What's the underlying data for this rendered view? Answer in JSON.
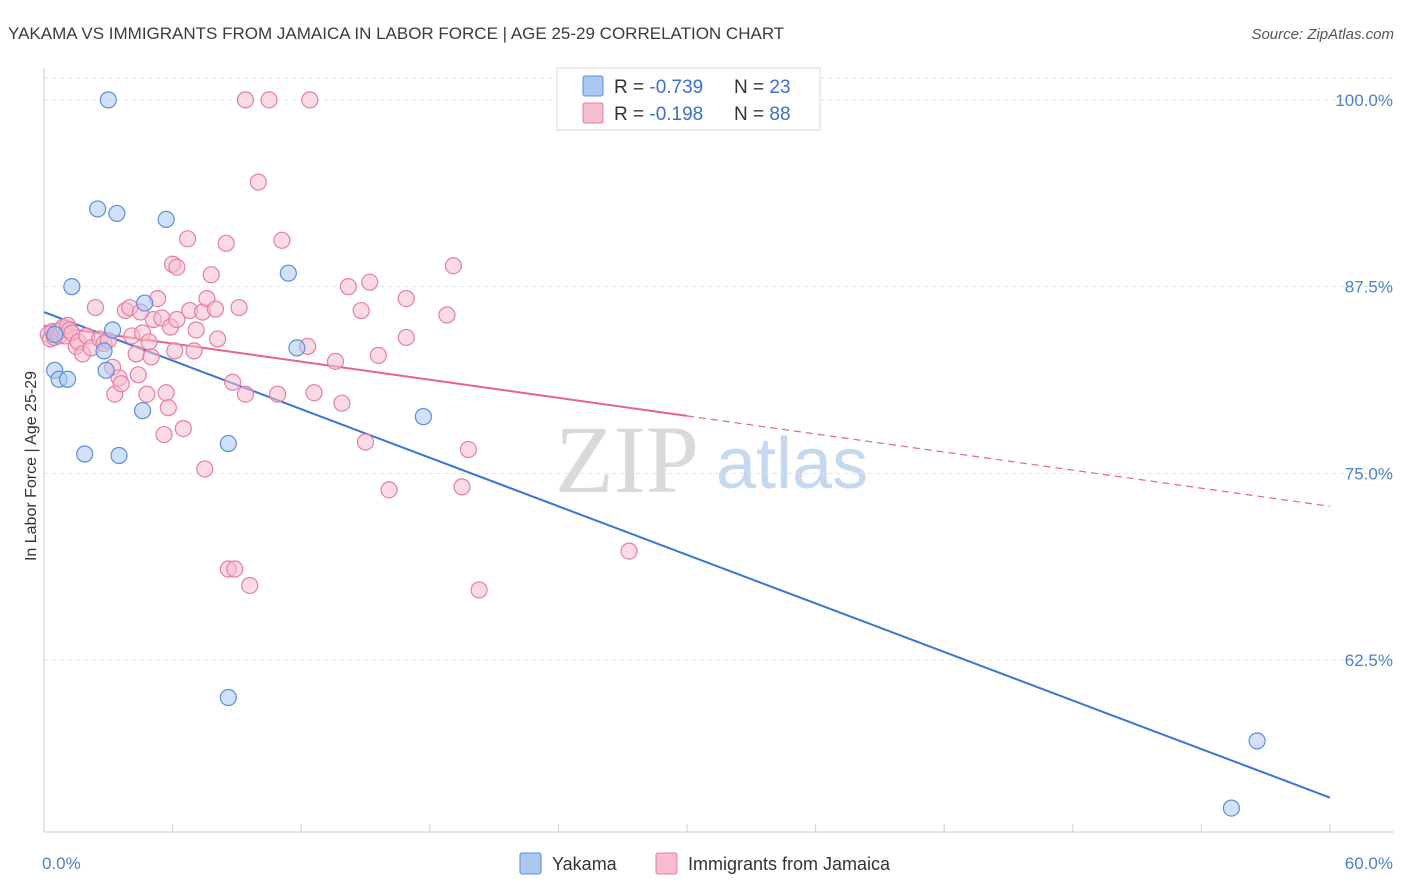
{
  "title": "YAKAMA VS IMMIGRANTS FROM JAMAICA IN LABOR FORCE | AGE 25-29 CORRELATION CHART",
  "source": "Source: ZipAtlas.com",
  "watermark": {
    "zip": "ZIP",
    "atlas": "atlas"
  },
  "colors": {
    "yakama_fill": "#aac8f2",
    "yakama_stroke": "#5b8fd9",
    "yakama_line": "#3a75d6",
    "jamaica_fill": "#f6bcd0",
    "jamaica_stroke": "#e57fa3",
    "jamaica_line": "#e8628f",
    "tick_label": "#4a7fd1",
    "grid": "#e3e3e3"
  },
  "legend": {
    "rows": [
      {
        "r_label": "R = ",
        "r_value": "-0.739",
        "n_label": "N = ",
        "n_value": "23"
      },
      {
        "r_label": "R = ",
        "r_value": "-0.198",
        "n_label": "N = ",
        "n_value": "88"
      }
    ]
  },
  "bottom_legend": [
    "Yakama",
    "Immigrants from Jamaica"
  ],
  "chart_data": {
    "type": "scatter",
    "title": "YAKAMA VS IMMIGRANTS FROM JAMAICA IN LABOR FORCE | AGE 25-29 CORRELATION CHART",
    "xlabel": "",
    "ylabel": "In Labor Force | Age 25-29",
    "xlim": [
      0,
      60
    ],
    "ylim": [
      51,
      102
    ],
    "x_tick_labels": [
      "0.0%",
      "60.0%"
    ],
    "y_ticks": [
      62.5,
      75.0,
      87.5,
      100.0
    ],
    "y_tick_labels": [
      "62.5%",
      "75.0%",
      "87.5%",
      "100.0%"
    ],
    "grid": true,
    "legend_placement": "top-center",
    "series": [
      {
        "name": "Yakama",
        "stats": {
          "R": -0.739,
          "N": 23
        },
        "trend": {
          "x": [
            0,
            60
          ],
          "y": [
            85.8,
            53.3
          ],
          "dashed_from": null
        },
        "points": [
          [
            0.5,
            84.3
          ],
          [
            0.5,
            81.9
          ],
          [
            0.7,
            81.3
          ],
          [
            1.1,
            81.3
          ],
          [
            1.3,
            87.5
          ],
          [
            1.9,
            76.3
          ],
          [
            2.5,
            92.7
          ],
          [
            2.8,
            83.2
          ],
          [
            2.9,
            81.9
          ],
          [
            3.0,
            100.0
          ],
          [
            3.2,
            84.6
          ],
          [
            3.4,
            92.4
          ],
          [
            3.5,
            76.2
          ],
          [
            4.6,
            79.2
          ],
          [
            4.7,
            86.4
          ],
          [
            5.7,
            92.0
          ],
          [
            8.6,
            77.0
          ],
          [
            8.6,
            60.0
          ],
          [
            11.4,
            88.4
          ],
          [
            11.8,
            83.4
          ],
          [
            17.7,
            78.8
          ],
          [
            56.6,
            57.1
          ],
          [
            55.4,
            52.6
          ]
        ]
      },
      {
        "name": "Immigrants from Jamaica",
        "stats": {
          "R": -0.198,
          "N": 88
        },
        "trend": {
          "x": [
            0,
            60
          ],
          "y": [
            84.9,
            72.8
          ],
          "dashed_from": 30
        },
        "points": [
          [
            0.2,
            84.3
          ],
          [
            0.3,
            84.0
          ],
          [
            0.4,
            84.5
          ],
          [
            0.5,
            84.1
          ],
          [
            0.6,
            84.5
          ],
          [
            0.7,
            84.2
          ],
          [
            0.8,
            84.6
          ],
          [
            0.9,
            84.8
          ],
          [
            1.0,
            84.2
          ],
          [
            1.1,
            84.9
          ],
          [
            1.2,
            84.6
          ],
          [
            1.3,
            84.4
          ],
          [
            1.5,
            83.5
          ],
          [
            1.6,
            83.8
          ],
          [
            1.8,
            83.0
          ],
          [
            2.0,
            84.2
          ],
          [
            2.2,
            83.4
          ],
          [
            2.4,
            86.1
          ],
          [
            2.6,
            84.0
          ],
          [
            2.8,
            83.7
          ],
          [
            3.0,
            83.9
          ],
          [
            3.2,
            82.1
          ],
          [
            3.3,
            80.3
          ],
          [
            3.5,
            81.4
          ],
          [
            3.6,
            81.0
          ],
          [
            3.8,
            85.9
          ],
          [
            4.0,
            86.1
          ],
          [
            4.1,
            84.2
          ],
          [
            4.3,
            83.0
          ],
          [
            4.4,
            81.6
          ],
          [
            4.5,
            85.8
          ],
          [
            4.6,
            84.4
          ],
          [
            4.8,
            80.3
          ],
          [
            4.9,
            83.8
          ],
          [
            5.0,
            82.8
          ],
          [
            5.1,
            85.3
          ],
          [
            5.3,
            86.7
          ],
          [
            5.5,
            85.4
          ],
          [
            5.6,
            77.6
          ],
          [
            5.7,
            80.4
          ],
          [
            5.8,
            79.4
          ],
          [
            5.9,
            84.8
          ],
          [
            6.1,
            83.2
          ],
          [
            6.2,
            85.3
          ],
          [
            6.0,
            89.0
          ],
          [
            6.2,
            88.8
          ],
          [
            6.5,
            78.0
          ],
          [
            6.7,
            90.7
          ],
          [
            6.8,
            85.9
          ],
          [
            7.0,
            83.2
          ],
          [
            7.1,
            84.6
          ],
          [
            7.4,
            85.8
          ],
          [
            7.5,
            75.3
          ],
          [
            7.6,
            86.7
          ],
          [
            7.8,
            88.3
          ],
          [
            8.0,
            86.0
          ],
          [
            8.1,
            84.0
          ],
          [
            8.5,
            90.4
          ],
          [
            8.6,
            68.6
          ],
          [
            8.8,
            81.1
          ],
          [
            8.9,
            68.6
          ],
          [
            9.1,
            86.1
          ],
          [
            9.4,
            80.3
          ],
          [
            9.6,
            67.5
          ],
          [
            10.0,
            94.5
          ],
          [
            10.5,
            100.0
          ],
          [
            10.9,
            80.3
          ],
          [
            11.1,
            90.6
          ],
          [
            12.3,
            83.5
          ],
          [
            12.6,
            80.4
          ],
          [
            13.6,
            82.5
          ],
          [
            13.9,
            79.7
          ],
          [
            14.2,
            87.5
          ],
          [
            14.8,
            85.9
          ],
          [
            15.0,
            77.1
          ],
          [
            15.2,
            87.8
          ],
          [
            15.6,
            82.9
          ],
          [
            16.1,
            73.9
          ],
          [
            16.9,
            84.1
          ],
          [
            16.9,
            86.7
          ],
          [
            18.8,
            85.6
          ],
          [
            19.1,
            88.9
          ],
          [
            19.5,
            74.1
          ],
          [
            19.8,
            76.6
          ],
          [
            20.3,
            67.2
          ],
          [
            27.3,
            69.8
          ],
          [
            9.4,
            100.0
          ],
          [
            12.4,
            100.0
          ]
        ]
      }
    ]
  }
}
